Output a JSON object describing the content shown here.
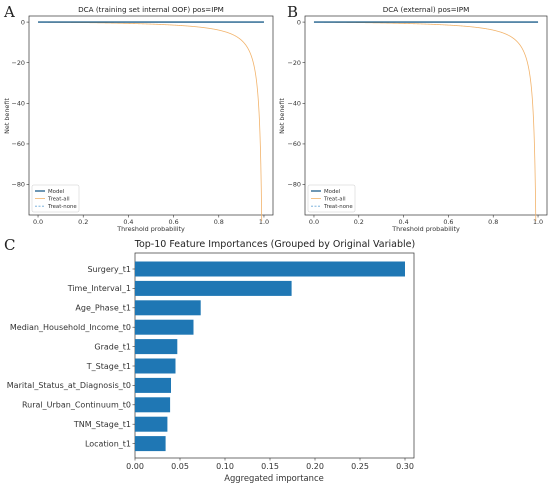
{
  "panels": {
    "a": {
      "letter": "A"
    },
    "b": {
      "letter": "B"
    },
    "c": {
      "letter": "C"
    }
  },
  "chart_data": [
    {
      "type": "line",
      "title": "DCA (training set internal OOF) pos=IPM",
      "xlabel": "Threshold probability",
      "ylabel": "Net benefit",
      "xlim": [
        -0.04,
        1.04
      ],
      "ylim": [
        -95,
        3
      ],
      "xticks": [
        0.0,
        0.2,
        0.4,
        0.6,
        0.8,
        1.0
      ],
      "xtick_labels": [
        "0.0",
        "0.2",
        "0.4",
        "0.6",
        "0.8",
        "1.0"
      ],
      "yticks": [
        0,
        -20,
        -40,
        -60,
        -80
      ],
      "ytick_labels": [
        "0",
        "−20",
        "−40",
        "−60",
        "−80"
      ],
      "legend_position": "bottom-left",
      "series": [
        {
          "name": "Model",
          "color": "#1f5f8b",
          "style": "solid",
          "x": [
            0.0,
            1.0
          ],
          "y": [
            0,
            0
          ]
        },
        {
          "name": "Treat-all",
          "color": "#f2b36b",
          "style": "solid",
          "prevalence": 0.01
        },
        {
          "name": "Treat-none",
          "color": "#6aa7d6",
          "style": "dashed",
          "x": [
            0.0,
            1.0
          ],
          "y": [
            0,
            0
          ]
        }
      ]
    },
    {
      "type": "line",
      "title": "DCA (external) pos=IPM",
      "xlabel": "Threshold probability",
      "ylabel": "Net benefit",
      "xlim": [
        -0.04,
        1.04
      ],
      "ylim": [
        -95,
        3
      ],
      "xticks": [
        0.0,
        0.2,
        0.4,
        0.6,
        0.8,
        1.0
      ],
      "xtick_labels": [
        "0.0",
        "0.2",
        "0.4",
        "0.6",
        "0.8",
        "1.0"
      ],
      "yticks": [
        0,
        -20,
        -40,
        -60,
        -80
      ],
      "ytick_labels": [
        "0",
        "−20",
        "−40",
        "−60",
        "−80"
      ],
      "legend_position": "bottom-left",
      "series": [
        {
          "name": "Model",
          "color": "#1f5f8b",
          "style": "solid",
          "x": [
            0.0,
            1.0
          ],
          "y": [
            0,
            0
          ]
        },
        {
          "name": "Treat-all",
          "color": "#f2b36b",
          "style": "solid",
          "prevalence": 0.01
        },
        {
          "name": "Treat-none",
          "color": "#6aa7d6",
          "style": "dashed",
          "x": [
            0.0,
            1.0
          ],
          "y": [
            0,
            0
          ]
        }
      ]
    },
    {
      "type": "bar",
      "orientation": "horizontal",
      "title": "Top-10 Feature Importances (Grouped by Original Variable)",
      "xlabel": "Aggregated importance",
      "ylabel": "",
      "xlim": [
        0,
        0.31
      ],
      "xticks": [
        0.0,
        0.05,
        0.1,
        0.15,
        0.2,
        0.25,
        0.3
      ],
      "xtick_labels": [
        "0.00",
        "0.05",
        "0.10",
        "0.15",
        "0.20",
        "0.25",
        "0.30"
      ],
      "bar_color": "#1f77b4",
      "categories": [
        "Surgery_t1",
        "Time_Interval_1",
        "Age_Phase_t1",
        "Median_Household_Income_t0",
        "Grade_t1",
        "T_Stage_t1",
        "Marital_Status_at_Diagnosis_t0",
        "Rural_Urban_Continuum_t0",
        "TNM_Stage_t1",
        "Location_t1"
      ],
      "values": [
        0.3,
        0.174,
        0.073,
        0.065,
        0.047,
        0.045,
        0.04,
        0.039,
        0.036,
        0.034
      ]
    }
  ]
}
